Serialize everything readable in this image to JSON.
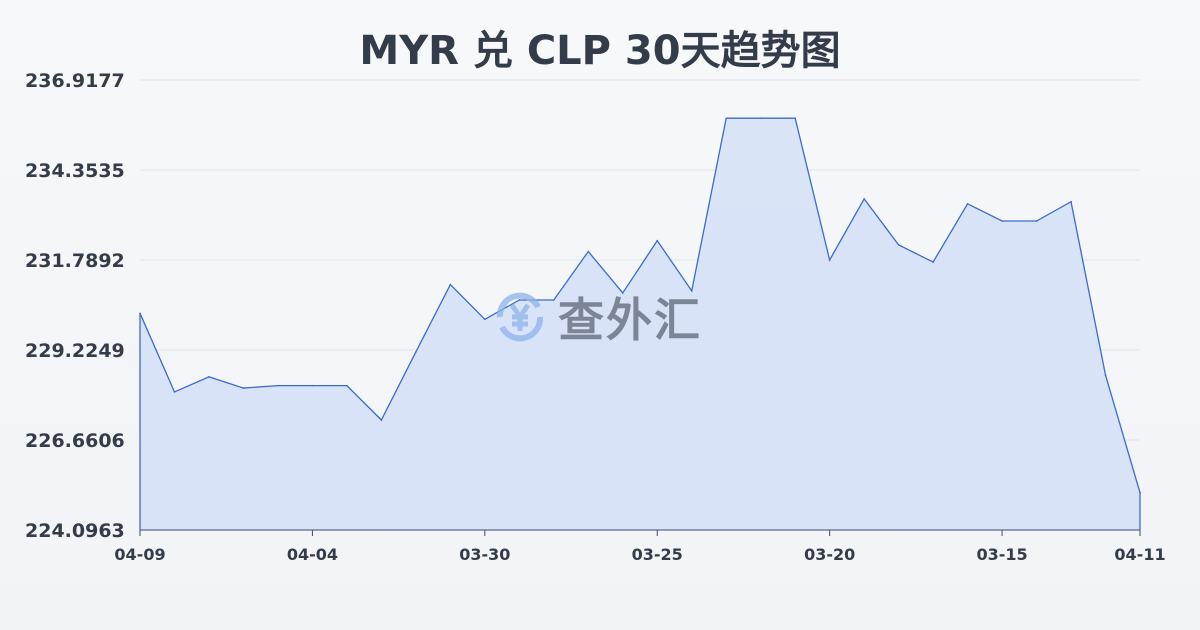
{
  "chart_data": {
    "type": "area",
    "title": "MYR 兑 CLP 30天趋势图",
    "xlabel": "",
    "ylabel": "",
    "ylim": [
      224.0963,
      236.9177
    ],
    "y_ticks": [
      "236.9177",
      "234.3535",
      "231.7892",
      "229.2249",
      "226.6606",
      "224.0963"
    ],
    "x_tick_labels": [
      {
        "index": 0,
        "label": "04-09"
      },
      {
        "index": 5,
        "label": "04-04"
      },
      {
        "index": 10,
        "label": "03-30"
      },
      {
        "index": 15,
        "label": "03-25"
      },
      {
        "index": 20,
        "label": "03-20"
      },
      {
        "index": 25,
        "label": "03-15"
      },
      {
        "index": 29,
        "label": "04-11"
      }
    ],
    "values": [
      230.27,
      228.03,
      228.46,
      228.14,
      228.21,
      228.21,
      228.21,
      227.23,
      229.17,
      231.09,
      230.1,
      230.65,
      230.65,
      232.03,
      230.85,
      232.34,
      230.91,
      235.83,
      235.83,
      235.83,
      231.79,
      233.53,
      232.22,
      231.73,
      233.39,
      232.9,
      232.9,
      233.45,
      228.51,
      225.16
    ],
    "grid": true,
    "colors": {
      "line": "#3a6bd0",
      "fill": "#d6e1f6",
      "grid": "#e1e4ea"
    }
  },
  "watermark": {
    "text": "查外汇",
    "icon": "yen-exchange-icon"
  }
}
